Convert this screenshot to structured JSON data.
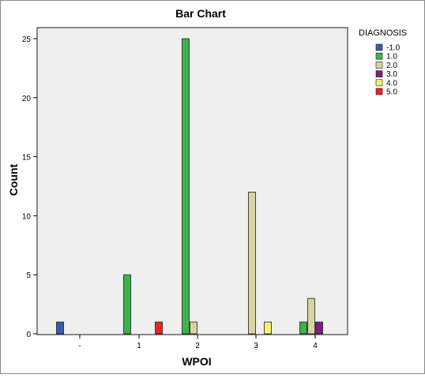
{
  "chart_data": {
    "type": "bar",
    "title": "Bar Chart",
    "xlabel": "WPOI",
    "ylabel": "Count",
    "categories": [
      "-",
      "1",
      "2",
      "3",
      "4"
    ],
    "ylim": [
      0,
      26
    ],
    "yticks": [
      0,
      5,
      10,
      15,
      20,
      25
    ],
    "grid": false,
    "legend": {
      "title": "DIAGNOSIS",
      "placement": "right"
    },
    "series": [
      {
        "name": "-1.0",
        "color": "#3c5bb0",
        "values": [
          1,
          0,
          0,
          0,
          0
        ]
      },
      {
        "name": "1.0",
        "color": "#3cb44b",
        "values": [
          0,
          5,
          25,
          0,
          1
        ]
      },
      {
        "name": "2.0",
        "color": "#d8d4a2",
        "values": [
          0,
          0,
          1,
          12,
          3
        ]
      },
      {
        "name": "3.0",
        "color": "#7d1f7a",
        "values": [
          0,
          0,
          0,
          0,
          1
        ]
      },
      {
        "name": "4.0",
        "color": "#f8f070",
        "values": [
          0,
          0,
          0,
          1,
          0
        ]
      },
      {
        "name": "5.0",
        "color": "#e8262a",
        "values": [
          0,
          1,
          0,
          0,
          0
        ]
      }
    ],
    "colors": {
      "plot_background": "#efefef",
      "axis": "#000000",
      "bar_stroke": "#1a1a1a"
    }
  }
}
